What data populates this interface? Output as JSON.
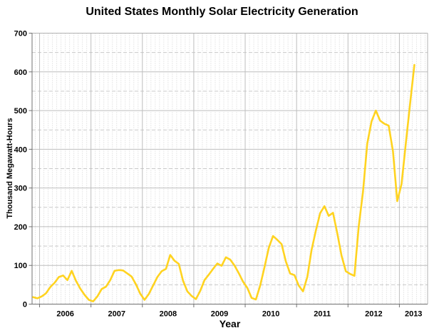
{
  "chart_data": {
    "type": "line",
    "title": "United States Monthly Solar Electricity Generation",
    "xlabel": "Year",
    "ylabel": "Thousand Megawatt-Hours",
    "ylim": [
      0,
      700
    ],
    "y_major_ticks": [
      0,
      100,
      200,
      300,
      400,
      500,
      600,
      700
    ],
    "y_minor_step": 50,
    "x_major_ticks": [
      2006,
      2007,
      2008,
      2009,
      2010,
      2011,
      2012,
      2013
    ],
    "x_domain": [
      2005.854,
      2013.549
    ],
    "grid": {
      "major": true,
      "minor": true
    },
    "legend": "none",
    "series": [
      {
        "name": "Monthly solar electricity generation",
        "unit": "thousand megawatt-hours",
        "color": "#FFD320",
        "start_year": 2005,
        "start_month": 11,
        "values": [
          18,
          15,
          20,
          28,
          44,
          55,
          70,
          74,
          62,
          86,
          60,
          40,
          24,
          11,
          7,
          20,
          39,
          45,
          62,
          86,
          88,
          87,
          79,
          71,
          51,
          27,
          11,
          26,
          48,
          70,
          85,
          91,
          127,
          112,
          104,
          60,
          33,
          21,
          13,
          34,
          62,
          76,
          91,
          105,
          99,
          121,
          115,
          100,
          80,
          58,
          42,
          16,
          12,
          48,
          95,
          145,
          176,
          166,
          155,
          110,
          79,
          75,
          48,
          33,
          70,
          140,
          190,
          235,
          253,
          228,
          236,
          183,
          125,
          85,
          78,
          73,
          200,
          290,
          415,
          472,
          500,
          474,
          466,
          461,
          395,
          266,
          310,
          415,
          518,
          618
        ]
      }
    ]
  },
  "style": {
    "background": "#FFFFFF",
    "line_color": "#FFD320",
    "grid_major_color": "#BEBEBE",
    "grid_minor_h_color": "#C9C9C9",
    "grid_minor_v_color": "#D2D2D2",
    "axis_color": "#707070",
    "frame_color": "#B0B0B0",
    "text_color": "#000000"
  }
}
